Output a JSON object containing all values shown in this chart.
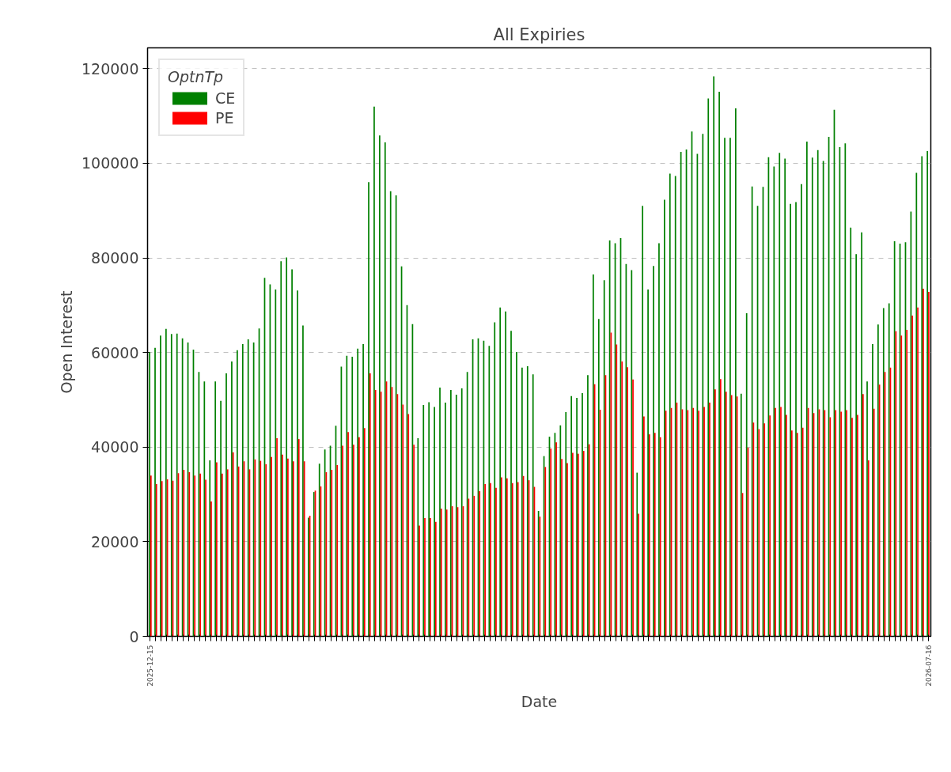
{
  "chart_data": {
    "type": "bar",
    "title": "All Expiries",
    "xlabel": "Date",
    "ylabel": "Open Interest",
    "legend_title": "OptnTp",
    "categories": [
      "2025-12-15",
      null,
      null,
      null,
      null,
      null,
      null,
      null,
      null,
      null,
      null,
      null,
      null,
      null,
      null,
      null,
      null,
      null,
      null,
      null,
      null,
      null,
      null,
      null,
      null,
      null,
      null,
      null,
      null,
      null,
      null,
      null,
      null,
      null,
      null,
      null,
      null,
      null,
      null,
      null,
      null,
      null,
      null,
      null,
      null,
      null,
      null,
      null,
      null,
      null,
      null,
      null,
      null,
      null,
      null,
      null,
      null,
      null,
      null,
      null,
      null,
      null,
      null,
      null,
      null,
      null,
      null,
      null,
      null,
      null,
      null,
      null,
      null,
      null,
      null,
      null,
      null,
      null,
      null,
      null,
      null,
      null,
      null,
      null,
      null,
      null,
      null,
      null,
      null,
      null,
      null,
      null,
      null,
      null,
      null,
      null,
      null,
      null,
      null,
      null,
      null,
      null,
      null,
      null,
      null,
      null,
      null,
      null,
      null,
      null,
      null,
      null,
      null,
      null,
      null,
      null,
      null,
      null,
      null,
      null,
      null,
      null,
      null,
      null,
      null,
      null,
      null,
      null,
      null,
      null,
      null,
      null,
      null,
      null,
      null,
      null,
      null,
      null,
      null,
      null,
      null,
      null,
      "2026-07-16"
    ],
    "series": [
      {
        "name": "CE",
        "color": "#008000",
        "values": [
          60100,
          61000,
          63600,
          65000,
          63900,
          64000,
          63000,
          62100,
          60600,
          55900,
          53900,
          37200,
          53900,
          49800,
          55600,
          58100,
          60500,
          61800,
          62800,
          62100,
          65100,
          75800,
          74400,
          73300,
          79300,
          80100,
          77600,
          73100,
          65700,
          25100,
          30500,
          36500,
          39500,
          40300,
          44500,
          57000,
          59300,
          59100,
          60800,
          61800,
          96000,
          112000,
          105900,
          104400,
          94100,
          93200,
          78200,
          70000,
          66000,
          41900,
          48900,
          49500,
          48500,
          52600,
          49400,
          52100,
          51100,
          52400,
          55900,
          62800,
          63000,
          62500,
          61400,
          66400,
          69500,
          68700,
          64600,
          60100,
          56800,
          57100,
          55400,
          26500,
          38100,
          42200,
          43000,
          44600,
          47400,
          50800,
          50400,
          51400,
          55200,
          76500,
          67100,
          75300,
          83700,
          83100,
          84200,
          78700,
          77400,
          34600,
          91000,
          73300,
          78300,
          83100,
          92300,
          97800,
          97300,
          102400,
          102900,
          106700,
          102000,
          106200,
          113700,
          118400,
          115100,
          105400,
          105400,
          111600,
          51300,
          68300,
          95100,
          91000,
          95000,
          101300,
          99300,
          102200,
          101000,
          91400,
          91800,
          95600,
          104600,
          101200,
          102800,
          100500,
          105600,
          111300,
          103400,
          104200,
          86400,
          80800,
          85400,
          53900,
          61800,
          65900,
          69400,
          70400,
          83500,
          83000,
          83300,
          89800,
          98000,
          101500,
          102600
        ]
      },
      {
        "name": "PE",
        "color": "#ff0000",
        "values": [
          34000,
          32200,
          32800,
          33200,
          32900,
          34500,
          35200,
          34700,
          34000,
          34400,
          33100,
          28500,
          36800,
          34400,
          35300,
          38900,
          35900,
          37000,
          35300,
          37400,
          37100,
          36400,
          37900,
          41900,
          38400,
          37600,
          37000,
          41700,
          37000,
          25500,
          30800,
          31700,
          34700,
          35200,
          36200,
          40300,
          43200,
          40500,
          42100,
          44000,
          55600,
          52100,
          51700,
          53900,
          52700,
          51200,
          49000,
          47000,
          40500,
          23400,
          25000,
          25000,
          24200,
          27000,
          26800,
          27500,
          27300,
          27500,
          29100,
          29700,
          30700,
          32200,
          32400,
          31400,
          33600,
          33400,
          32400,
          32600,
          33900,
          33000,
          31600,
          25300,
          35800,
          39700,
          41000,
          37500,
          36600,
          38800,
          38600,
          39200,
          40600,
          53300,
          47900,
          55200,
          64200,
          61700,
          58100,
          56900,
          54300,
          25900,
          46500,
          42700,
          43000,
          42100,
          47700,
          48300,
          49400,
          48000,
          47800,
          48300,
          47700,
          48500,
          49400,
          52200,
          54400,
          51700,
          51000,
          50700,
          30300,
          39900,
          45200,
          43800,
          45000,
          46700,
          48300,
          48500,
          46800,
          43500,
          43000,
          44100,
          48300,
          47200,
          48000,
          47800,
          46300,
          47800,
          47500,
          47800,
          46200,
          46800,
          51200,
          37200,
          48100,
          53200,
          55900,
          56800,
          64500,
          63600,
          64800,
          67800,
          69500,
          73500,
          72800
        ]
      }
    ],
    "ylim": [
      0,
      124400
    ],
    "yticks": [
      0,
      20000,
      40000,
      60000,
      80000,
      100000,
      120000
    ],
    "grid": "y",
    "legend": "top left"
  }
}
